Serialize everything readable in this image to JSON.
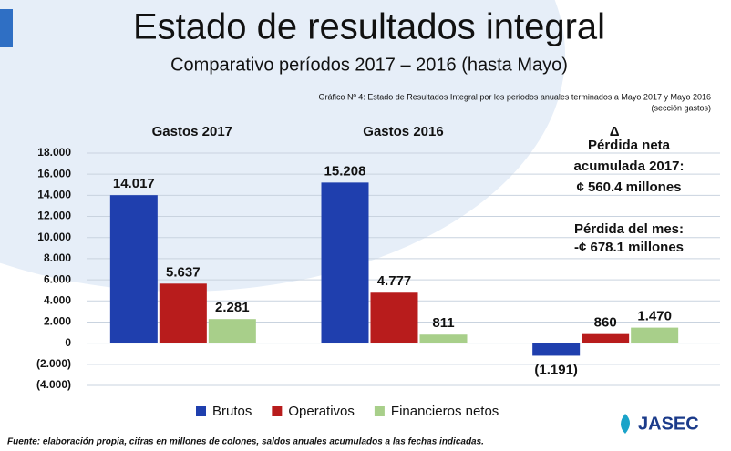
{
  "chart_data": {
    "type": "bar",
    "title": "Estado de resultados integral",
    "subtitle": "Comparativo períodos 2017 – 2016 (hasta Mayo)",
    "caption": "Gráfico Nº 4: Estado de Resultados Integral por los periodos anuales terminados a Mayo 2017 y Mayo 2016",
    "caption_note": "(sección gastos)",
    "categories": [
      "Gastos 2017",
      "Gastos 2016",
      "Δ"
    ],
    "series": [
      {
        "name": "Brutos",
        "color": "#1f3fae",
        "values": [
          14017,
          15208,
          -1191
        ],
        "value_labels": [
          "14.017",
          "15.208",
          "(1.191)"
        ]
      },
      {
        "name": "Operativos",
        "color": "#b81c1c",
        "values": [
          5637,
          4777,
          860
        ],
        "value_labels": [
          "5.637",
          "4.777",
          "860"
        ]
      },
      {
        "name": "Financieros netos",
        "color": "#a8cf8a",
        "values": [
          2281,
          811,
          1470
        ],
        "value_labels": [
          "2.281",
          "811",
          "1.470"
        ]
      }
    ],
    "ylim": [
      -4000,
      18000
    ],
    "yticks": [
      {
        "value": -4000,
        "label": "(4.000)"
      },
      {
        "value": -2000,
        "label": "(2.000)"
      },
      0,
      {
        "value": 2000,
        "label": "2.000"
      },
      {
        "value": 4000,
        "label": "4.000"
      },
      {
        "value": 6000,
        "label": "6.000"
      },
      {
        "value": 8000,
        "label": "8.000"
      },
      {
        "value": 10000,
        "label": "10.000"
      },
      {
        "value": 12000,
        "label": "12.000"
      },
      {
        "value": 14000,
        "label": "14.000"
      },
      {
        "value": 16000,
        "label": "16.000"
      },
      {
        "value": 18000,
        "label": "18.000"
      }
    ],
    "grid": true,
    "legend": "bottom",
    "annotations": [
      "Pérdida neta",
      "acumulada 2017:",
      "¢ 560.4 millones",
      "Pérdida del mes:",
      "-¢ 678.1 millones"
    ],
    "footnote": "Fuente: elaboración propia, cifras en millones de colones, saldos anuales acumulados a las fechas indicadas.",
    "logo": "JASEC"
  }
}
